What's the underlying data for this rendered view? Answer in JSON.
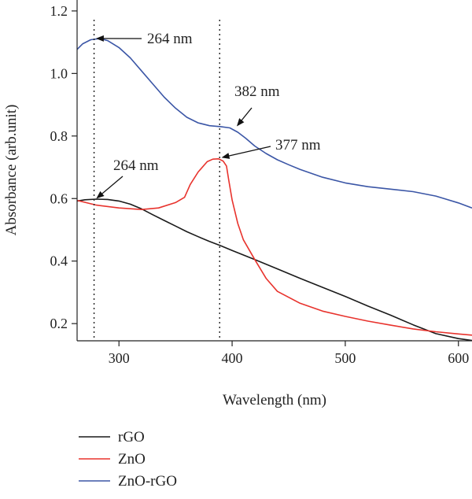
{
  "chart_data": {
    "type": "line",
    "xlabel": "Wavelength (nm)",
    "ylabel": "Absorbance (arb.unit)",
    "xlim": [
      263,
      612
    ],
    "ylim": [
      0.145,
      1.235
    ],
    "x_ticks": [
      300,
      400,
      500,
      600
    ],
    "y_ticks": [
      0.2,
      0.4,
      0.6,
      0.8,
      1.0,
      1.2
    ],
    "y_tick_labels": [
      "0.2",
      "0.4",
      "0.6",
      "0.8",
      "1.0",
      "1.2"
    ],
    "grid": false,
    "legend_position": "bottom-left",
    "series": [
      {
        "name": "rGO",
        "color": "#1a1a1a",
        "points": [
          [
            263,
            0.592
          ],
          [
            270,
            0.596
          ],
          [
            280,
            0.598
          ],
          [
            290,
            0.597
          ],
          [
            300,
            0.592
          ],
          [
            310,
            0.582
          ],
          [
            320,
            0.567
          ],
          [
            330,
            0.548
          ],
          [
            340,
            0.53
          ],
          [
            350,
            0.512
          ],
          [
            360,
            0.494
          ],
          [
            370,
            0.478
          ],
          [
            380,
            0.463
          ],
          [
            390,
            0.449
          ],
          [
            400,
            0.434
          ],
          [
            420,
            0.405
          ],
          [
            440,
            0.375
          ],
          [
            460,
            0.345
          ],
          [
            480,
            0.316
          ],
          [
            500,
            0.287
          ],
          [
            520,
            0.256
          ],
          [
            540,
            0.227
          ],
          [
            560,
            0.196
          ],
          [
            580,
            0.168
          ],
          [
            600,
            0.152
          ],
          [
            612,
            0.146
          ]
        ]
      },
      {
        "name": "ZnO",
        "color": "#e8332d",
        "points": [
          [
            263,
            0.594
          ],
          [
            280,
            0.579
          ],
          [
            300,
            0.57
          ],
          [
            320,
            0.565
          ],
          [
            335,
            0.57
          ],
          [
            350,
            0.587
          ],
          [
            358,
            0.604
          ],
          [
            363,
            0.645
          ],
          [
            370,
            0.685
          ],
          [
            378,
            0.718
          ],
          [
            383,
            0.726
          ],
          [
            388,
            0.727
          ],
          [
            392,
            0.72
          ],
          [
            395,
            0.704
          ],
          [
            397,
            0.66
          ],
          [
            400,
            0.595
          ],
          [
            405,
            0.52
          ],
          [
            410,
            0.468
          ],
          [
            420,
            0.405
          ],
          [
            430,
            0.345
          ],
          [
            440,
            0.303
          ],
          [
            460,
            0.265
          ],
          [
            480,
            0.24
          ],
          [
            500,
            0.223
          ],
          [
            520,
            0.208
          ],
          [
            540,
            0.195
          ],
          [
            560,
            0.183
          ],
          [
            580,
            0.174
          ],
          [
            600,
            0.167
          ],
          [
            612,
            0.163
          ]
        ]
      },
      {
        "name": "ZnO-rGO",
        "color": "#3b56a6",
        "points": [
          [
            263,
            1.077
          ],
          [
            268,
            1.095
          ],
          [
            275,
            1.108
          ],
          [
            283,
            1.112
          ],
          [
            290,
            1.105
          ],
          [
            300,
            1.083
          ],
          [
            310,
            1.05
          ],
          [
            320,
            1.008
          ],
          [
            330,
            0.966
          ],
          [
            340,
            0.924
          ],
          [
            350,
            0.889
          ],
          [
            360,
            0.86
          ],
          [
            370,
            0.842
          ],
          [
            380,
            0.833
          ],
          [
            390,
            0.83
          ],
          [
            398,
            0.826
          ],
          [
            405,
            0.812
          ],
          [
            412,
            0.793
          ],
          [
            420,
            0.768
          ],
          [
            430,
            0.744
          ],
          [
            440,
            0.724
          ],
          [
            450,
            0.708
          ],
          [
            460,
            0.693
          ],
          [
            480,
            0.668
          ],
          [
            500,
            0.65
          ],
          [
            520,
            0.638
          ],
          [
            540,
            0.63
          ],
          [
            560,
            0.622
          ],
          [
            580,
            0.608
          ],
          [
            600,
            0.586
          ],
          [
            612,
            0.57
          ]
        ]
      }
    ],
    "vlines": [
      278,
      389
    ],
    "annotations": [
      {
        "text": "264 nm",
        "tip_x": 281,
        "tip_y": 1.112
      },
      {
        "text": "382 nm",
        "tip_x": 405,
        "tip_y": 0.83
      },
      {
        "text": "377 nm",
        "tip_x": 392,
        "tip_y": 0.727
      },
      {
        "text": "264 nm",
        "tip_x": 281,
        "tip_y": 0.598
      }
    ]
  }
}
